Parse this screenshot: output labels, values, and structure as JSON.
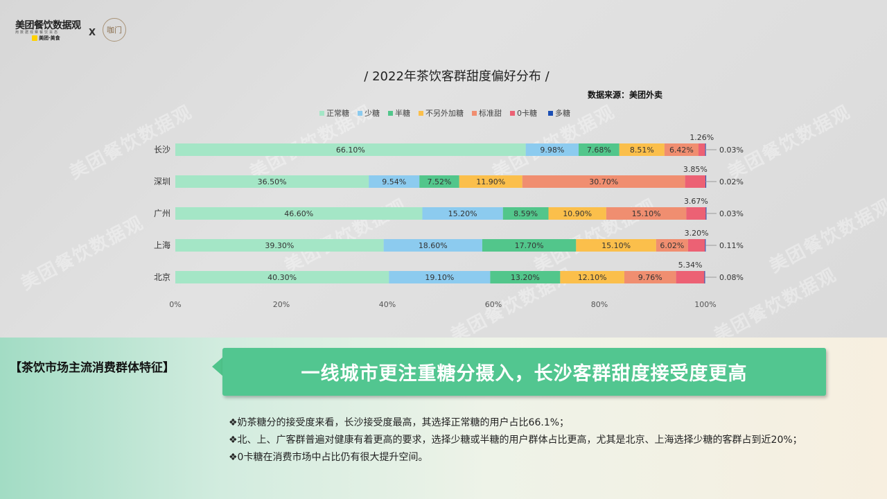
{
  "header": {
    "logo_main": "美团餐饮数据观",
    "logo_sub": "用数据观察餐饮百态",
    "logo_badge": "美团·美食",
    "logo_x": "X",
    "partner_logo": "咖门"
  },
  "watermark_text": "美团餐饮数据观",
  "chart_data": {
    "type": "bar",
    "orientation": "horizontal",
    "stacked": true,
    "title": "/ 2022年茶饮客群甜度偏好分布 /",
    "source": "数据来源：美团外卖",
    "categories": [
      "长沙",
      "深圳",
      "广州",
      "上海",
      "北京"
    ],
    "series": [
      {
        "name": "正常糖",
        "color": "#a4e6c6",
        "values": [
          66.1,
          36.5,
          46.6,
          39.3,
          40.3
        ],
        "labels": [
          "66.10%",
          "36.50%",
          "46.60%",
          "39.30%",
          "40.30%"
        ]
      },
      {
        "name": "少糖",
        "color": "#8ccbef",
        "values": [
          9.98,
          9.54,
          15.2,
          18.6,
          19.1
        ],
        "labels": [
          "9.98%",
          "9.54%",
          "15.20%",
          "18.60%",
          "19.10%"
        ]
      },
      {
        "name": "半糖",
        "color": "#52c68b",
        "values": [
          7.68,
          7.52,
          8.59,
          17.7,
          13.2
        ],
        "labels": [
          "7.68%",
          "7.52%",
          "8.59%",
          "17.70%",
          "13.20%"
        ]
      },
      {
        "name": "不另外加糖",
        "color": "#fbbf4b",
        "values": [
          8.51,
          11.9,
          10.9,
          15.1,
          12.1
        ],
        "labels": [
          "8.51%",
          "11.90%",
          "10.90%",
          "15.10%",
          "12.10%"
        ]
      },
      {
        "name": "标准甜",
        "color": "#f08e70",
        "values": [
          6.42,
          30.7,
          15.1,
          6.02,
          9.76
        ],
        "labels": [
          "6.42%",
          "30.70%",
          "15.10%",
          "6.02%",
          "9.76%"
        ]
      },
      {
        "name": "0卡糖",
        "color": "#ec6174",
        "values": [
          1.26,
          3.85,
          3.67,
          3.2,
          5.34
        ],
        "labels": [
          "1.26%",
          "3.85%",
          "3.67%",
          "3.20%",
          "5.34%"
        ]
      },
      {
        "name": "多糖",
        "color": "#1c4fb4",
        "values": [
          0.03,
          0.02,
          0.03,
          0.11,
          0.08
        ],
        "labels": [
          "0.03%",
          "0.02%",
          "0.03%",
          "0.11%",
          "0.08%"
        ]
      }
    ],
    "xlim": [
      0,
      100
    ],
    "xticks": [
      "0%",
      "20%",
      "40%",
      "60%",
      "80%",
      "100%"
    ],
    "legend_position": "top"
  },
  "section": {
    "label": "【茶饮市场主流消费群体特征】",
    "headline": "一线城市更注重糖分摄入，长沙客群甜度接受度更高"
  },
  "bullets": [
    "❖奶茶糖分的接受度来看，长沙接受度最高，其选择正常糖的用户占比66.1%；",
    "❖北、上、广客群普遍对健康有着更高的要求，选择少糖或半糖的用户群体占比更高，尤其是北京、上海选择少糖的客群占到近20%；",
    "❖0卡糖在消费市场中占比仍有很大提升空间。"
  ]
}
